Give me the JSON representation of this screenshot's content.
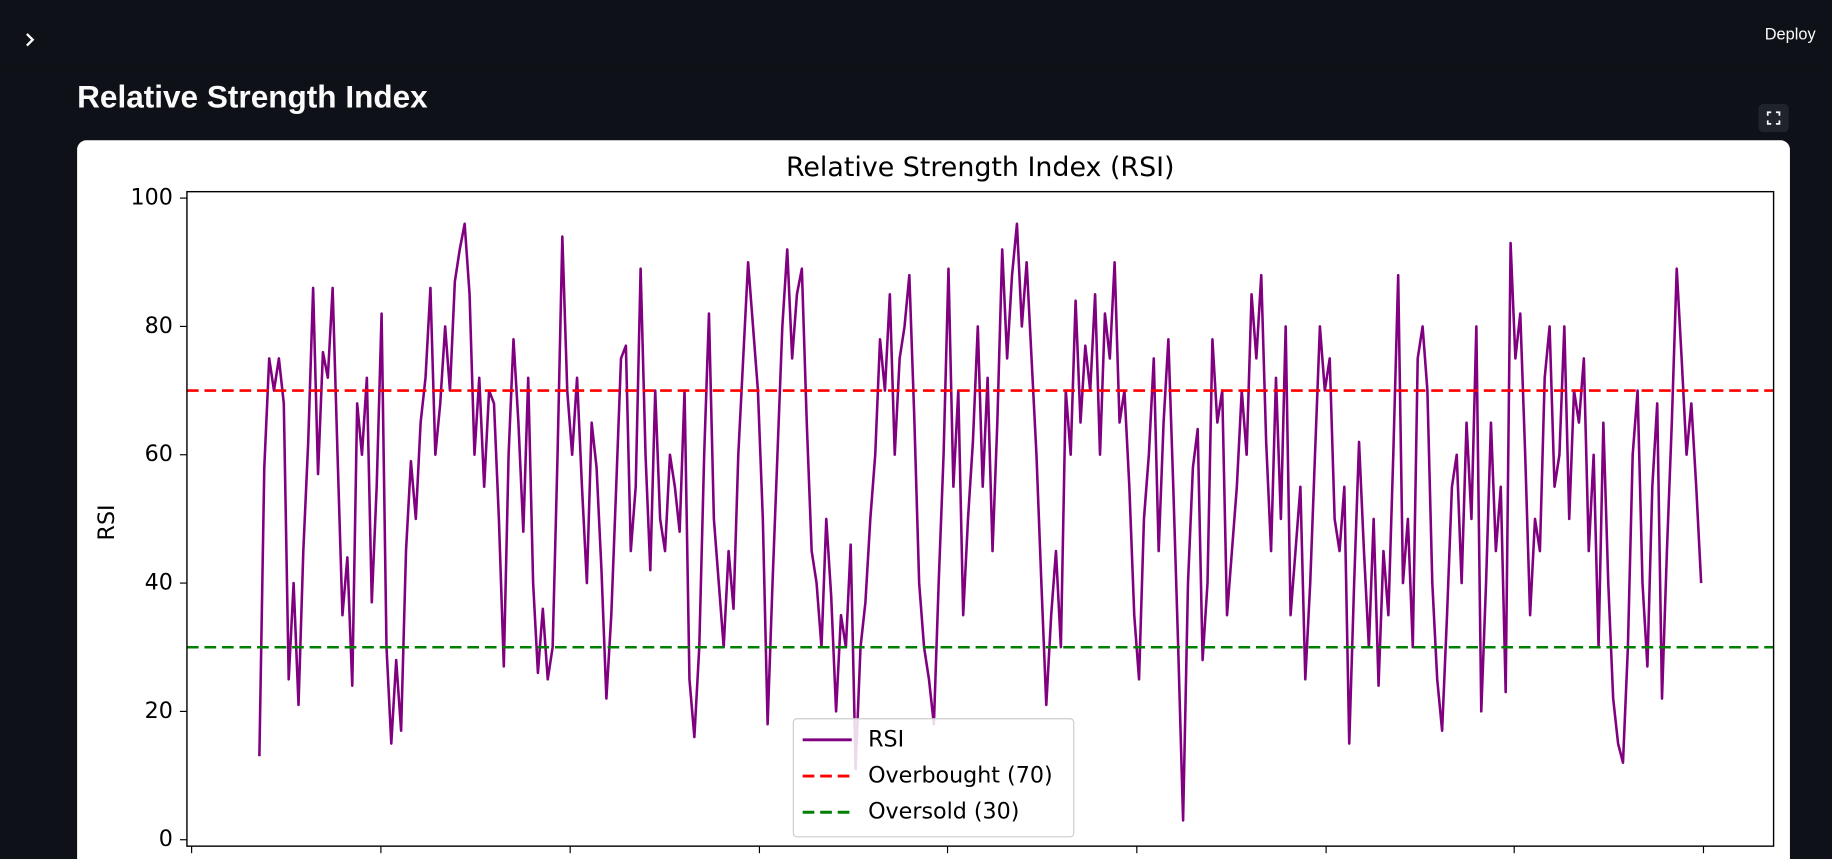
{
  "app": {
    "header": {
      "button": "Deploy"
    },
    "page_title": "Relative Strength Index"
  },
  "chart_data": {
    "type": "line",
    "title": "Relative Strength Index (RSI)",
    "y_label": "RSI",
    "ylim": [
      -1,
      101
    ],
    "yticks": [
      0,
      20,
      40,
      60,
      80,
      100
    ],
    "legend": "lower center",
    "series": [
      {
        "name": "RSI",
        "color": "#800080",
        "values": [
          13,
          58,
          75,
          70,
          75,
          68,
          25,
          40,
          21,
          45,
          62,
          86,
          57,
          76,
          72,
          86,
          60,
          35,
          44,
          24,
          68,
          60,
          72,
          37,
          55,
          82,
          30,
          15,
          28,
          17,
          45,
          59,
          50,
          65,
          72,
          86,
          60,
          68,
          80,
          70,
          87,
          92,
          96,
          85,
          60,
          72,
          55,
          70,
          68,
          50,
          27,
          60,
          78,
          65,
          48,
          72,
          40,
          26,
          36,
          25,
          30,
          60,
          94,
          70,
          60,
          72,
          55,
          40,
          65,
          58,
          42,
          22,
          35,
          55,
          75,
          77,
          45,
          55,
          89,
          60,
          42,
          70,
          50,
          45,
          60,
          55,
          48,
          70,
          25,
          16,
          30,
          60,
          82,
          50,
          40,
          30,
          45,
          36,
          60,
          75,
          90,
          80,
          70,
          50,
          18,
          40,
          60,
          80,
          92,
          75,
          85,
          89,
          65,
          45,
          40,
          30,
          50,
          38,
          20,
          35,
          30,
          46,
          11,
          30,
          37,
          50,
          60,
          78,
          70,
          85,
          60,
          75,
          80,
          88,
          66,
          40,
          30,
          25,
          18,
          40,
          60,
          89,
          55,
          70,
          35,
          50,
          62,
          80,
          55,
          72,
          45,
          65,
          92,
          75,
          88,
          96,
          80,
          90,
          75,
          60,
          40,
          21,
          35,
          45,
          30,
          70,
          60,
          84,
          65,
          77,
          70,
          85,
          60,
          82,
          75,
          90,
          65,
          70,
          55,
          35,
          25,
          50,
          60,
          75,
          45,
          65,
          78,
          55,
          30,
          3,
          40,
          58,
          64,
          28,
          40,
          78,
          65,
          70,
          35,
          45,
          55,
          70,
          60,
          85,
          75,
          88,
          62,
          45,
          72,
          50,
          80,
          35,
          45,
          55,
          25,
          40,
          60,
          80,
          70,
          75,
          50,
          45,
          55,
          15,
          40,
          62,
          45,
          30,
          50,
          24,
          45,
          35,
          60,
          88,
          40,
          50,
          30,
          75,
          80,
          70,
          40,
          25,
          17,
          35,
          55,
          60,
          40,
          65,
          50,
          80,
          20,
          40,
          65,
          45,
          55,
          23,
          93,
          75,
          82,
          60,
          35,
          50,
          45,
          72,
          80,
          55,
          60,
          80,
          50,
          70,
          65,
          75,
          45,
          60,
          30,
          65,
          40,
          22,
          15,
          12,
          30,
          60,
          70,
          40,
          27,
          55,
          68,
          22,
          45,
          65,
          89,
          75,
          60,
          68,
          55,
          40
        ]
      }
    ],
    "hlines": [
      {
        "name": "Overbought (70)",
        "color": "#ff0000",
        "value": 70,
        "linestyle": "dashed"
      },
      {
        "name": "Oversold (30)",
        "color": "#008000",
        "value": 30,
        "linestyle": "dashed"
      }
    ]
  }
}
